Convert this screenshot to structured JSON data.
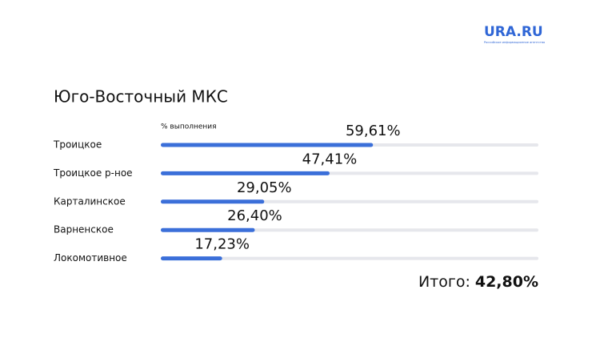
{
  "chart_data": {
    "type": "progress_bar",
    "title": "Юго-Восточный МКС",
    "subtitle": "% выполнения",
    "brand": "URA.RU",
    "brand_tagline": "Российское информационное агентство",
    "categories": [
      "Троицкое",
      "Троицкое р-ное",
      "Карталинское",
      "Варненское",
      "Локомотивное"
    ],
    "values": [
      59.61,
      47.41,
      29.05,
      26.4,
      17.23
    ],
    "value_labels": [
      "59,61%",
      "47,41%",
      "29,05%",
      "26,40%",
      "17,23%"
    ],
    "xlim": [
      0,
      100
    ],
    "color": "#3b6fd9",
    "track_color": "#e6e7ec",
    "total_label": "Итого:",
    "total_value_label": "42,80%"
  }
}
